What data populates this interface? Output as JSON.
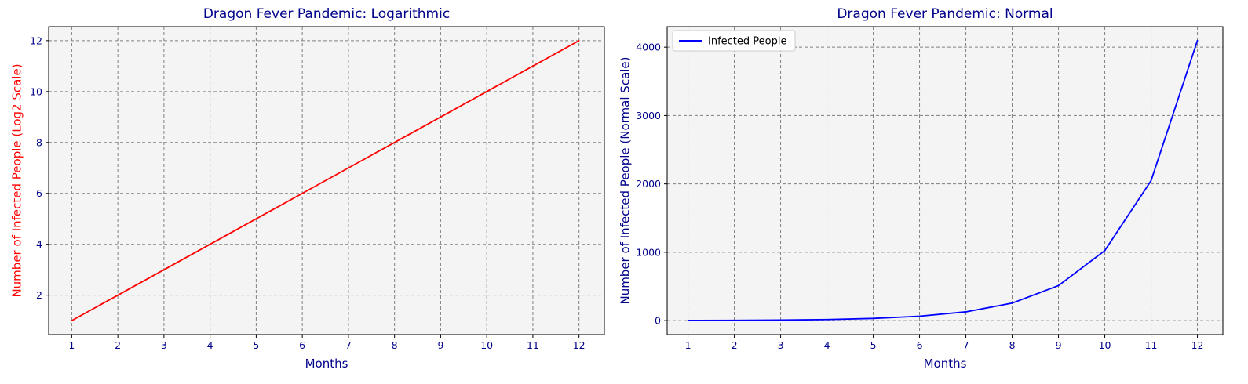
{
  "chart_data": [
    {
      "type": "line",
      "title": "Dragon Fever Pandemic: Logarithmic",
      "xlabel": "Months",
      "ylabel": "Number of Infected People (Log2 Scale)",
      "x": [
        1,
        2,
        3,
        4,
        5,
        6,
        7,
        8,
        9,
        10,
        11,
        12
      ],
      "series": [
        {
          "values": [
            1,
            2,
            3,
            4,
            5,
            6,
            7,
            8,
            9,
            10,
            11,
            12
          ],
          "color": "#ff0000"
        }
      ],
      "xlim": [
        0.5,
        12.55
      ],
      "ylim": [
        0.45,
        12.55
      ],
      "xticks": [
        "1",
        "2",
        "3",
        "4",
        "5",
        "6",
        "7",
        "8",
        "9",
        "10",
        "11",
        "12"
      ],
      "yticks": [
        "2",
        "4",
        "6",
        "8",
        "10",
        "12"
      ],
      "grid": true,
      "legend": null,
      "colors": {
        "title": "#00008b",
        "xlabel": "#00008b",
        "ylabel": "#ff0000",
        "ticks": "#00008b",
        "background": "#f4f4f4",
        "grid": "#808080"
      }
    },
    {
      "type": "line",
      "title": "Dragon Fever Pandemic: Normal",
      "xlabel": "Months",
      "ylabel": "Number of Infected People (Normal Scale)",
      "x": [
        1,
        2,
        3,
        4,
        5,
        6,
        7,
        8,
        9,
        10,
        11,
        12
      ],
      "series": [
        {
          "name": "Infected People",
          "values": [
            2,
            4,
            8,
            16,
            32,
            64,
            128,
            256,
            512,
            1024,
            2048,
            4096
          ],
          "color": "#0000ff"
        }
      ],
      "xlim": [
        0.55,
        12.55
      ],
      "ylim": [
        -205,
        4300
      ],
      "xticks": [
        "1",
        "2",
        "3",
        "4",
        "5",
        "6",
        "7",
        "8",
        "9",
        "10",
        "11",
        "12"
      ],
      "yticks": [
        "0",
        "1000",
        "2000",
        "3000",
        "4000"
      ],
      "grid": true,
      "legend": "top-left",
      "colors": {
        "title": "#00008b",
        "xlabel": "#00008b",
        "ylabel": "#00008b",
        "ticks": "#00008b",
        "background": "#f4f4f4",
        "grid": "#808080"
      }
    }
  ]
}
